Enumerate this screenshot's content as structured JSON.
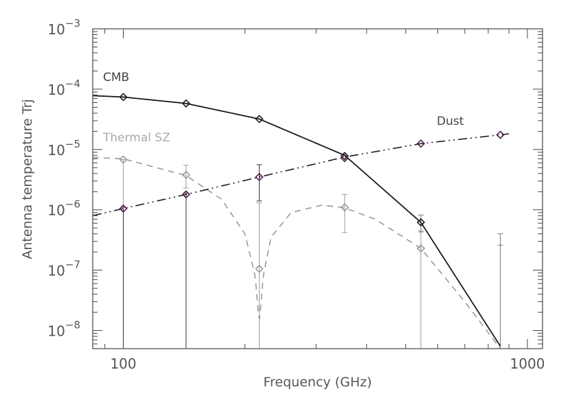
{
  "chart_data": {
    "type": "line",
    "title": "",
    "xlabel": "Frequency (GHz)",
    "ylabel": "Antenna temperature Trj",
    "xscale": "log",
    "yscale": "log",
    "xlim": [
      84,
      1090
    ],
    "ylim": [
      5e-09,
      0.001
    ],
    "x_ticks": [
      {
        "value": 100,
        "label": "100"
      },
      {
        "value": 1000,
        "label": "1000"
      }
    ],
    "y_ticks": [
      {
        "value": 1e-08,
        "base": "10",
        "exp": "−8"
      },
      {
        "value": 1e-07,
        "base": "10",
        "exp": "−7"
      },
      {
        "value": 1e-06,
        "base": "10",
        "exp": "−6"
      },
      {
        "value": 1e-05,
        "base": "10",
        "exp": "−5"
      },
      {
        "value": 0.0001,
        "base": "10",
        "exp": "−4"
      },
      {
        "value": 0.001,
        "base": "10",
        "exp": "−3"
      }
    ],
    "grid": false,
    "series": [
      {
        "name": "CMB",
        "color": "#1a1a1a",
        "line_style": "solid",
        "curve_x": [
          84,
          100,
          143,
          217,
          353,
          545,
          857
        ],
        "curve_y": [
          7.8e-05,
          7.4e-05,
          5.8e-05,
          3.2e-05,
          8e-06,
          6.2e-07,
          5.5e-09
        ],
        "points": [
          {
            "x": 100,
            "y": 7.4e-05
          },
          {
            "x": 143,
            "y": 5.8e-05
          },
          {
            "x": 217,
            "y": 3.2e-05
          },
          {
            "x": 353,
            "y": 7.8e-06
          },
          {
            "x": 545,
            "y": 6.2e-07
          }
        ]
      },
      {
        "name": "Thermal SZ",
        "color": "#9a9a9a",
        "line_style": "dashed",
        "curve_x": [
          84,
          100,
          143,
          175,
          200,
          212,
          217,
          222,
          232,
          260,
          310,
          353,
          420,
          545,
          700,
          857,
          880
        ],
        "curve_y": [
          7.4e-06,
          7e-06,
          3.7e-06,
          1.5e-06,
          4e-07,
          8e-08,
          1.3e-08,
          8e-08,
          3.5e-07,
          9e-07,
          1.2e-06,
          1.08e-06,
          7e-07,
          2.3e-07,
          3e-08,
          5e-09,
          3.5e-09
        ],
        "points": [
          {
            "x": 100,
            "y": 6.8e-06,
            "err_low": 5e-09,
            "err_high": 6.8e-06
          },
          {
            "x": 143,
            "y": 3.8e-06,
            "err_low": 2.3e-06,
            "err_high": 5.5e-06
          },
          {
            "x": 217,
            "y": 1.05e-07,
            "err_low": 5e-09,
            "err_high": 1.3e-06
          },
          {
            "x": 353,
            "y": 1.1e-06,
            "err_low": 4.2e-07,
            "err_high": 1.8e-06
          },
          {
            "x": 545,
            "y": 2.3e-07,
            "err_low": 5e-09,
            "err_high": 4.5e-07
          }
        ]
      },
      {
        "name": "Dust",
        "color": "#1a1a1a",
        "line_style": "dash-dot-dot",
        "point_color": "#4a1f4a",
        "curve_x": [
          84,
          100,
          143,
          217,
          353,
          545,
          857,
          900
        ],
        "curve_y": [
          8e-07,
          1.05e-06,
          1.8e-06,
          3.5e-06,
          7.5e-06,
          1.25e-05,
          1.75e-05,
          1.82e-05
        ],
        "points": [
          {
            "x": 100,
            "y": 1.05e-06,
            "err_low": 5e-09,
            "err_high": 1.1e-06
          },
          {
            "x": 143,
            "y": 1.8e-06,
            "err_low": 5e-09,
            "err_high": 1.9e-06
          },
          {
            "x": 217,
            "y": 3.5e-06,
            "err_low": 1.4e-06,
            "err_high": 5.6e-06
          },
          {
            "x": 353,
            "y": 7.2e-06
          },
          {
            "x": 545,
            "y": 1.25e-05
          },
          {
            "x": 857,
            "y": 1.75e-05
          }
        ]
      }
    ],
    "extra_errorbars": [
      {
        "x": 545,
        "y_low": 4.3e-07,
        "y_high": 8.2e-07,
        "color": "#777777"
      },
      {
        "x": 857,
        "y_low": 5e-09,
        "y_high": 4e-07,
        "color": "#777777",
        "center": 2.6e-07
      }
    ]
  }
}
